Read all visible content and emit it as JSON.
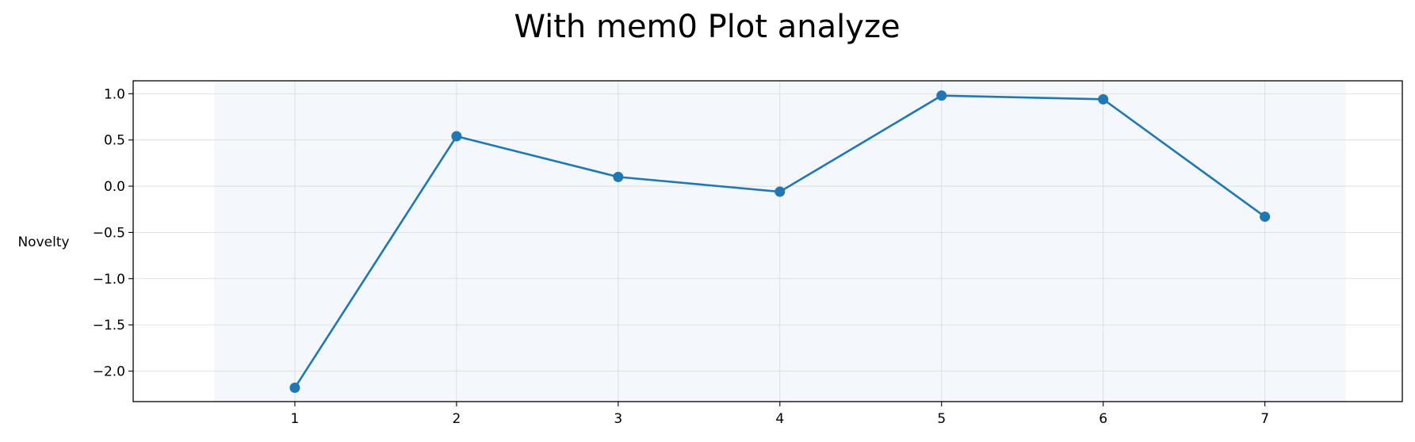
{
  "chart_data": {
    "type": "line",
    "title": "With mem0 Plot analyze",
    "xlabel": "",
    "ylabel": "Novelty",
    "x": [
      1,
      2,
      3,
      4,
      5,
      6,
      7
    ],
    "x_ticks": [
      "1",
      "2",
      "3",
      "4",
      "5",
      "6",
      "7"
    ],
    "y_ticks": [
      1.0,
      0.5,
      0.0,
      -0.5,
      -1.0,
      -1.5,
      -2.0
    ],
    "y_tick_labels": [
      "1.0",
      "0.5",
      "0.0",
      "−0.5",
      "−1.0",
      "−1.5",
      "−2.0"
    ],
    "xlim": [
      0.0,
      7.85
    ],
    "ylim": [
      -2.33,
      1.14
    ],
    "shaded_x_range": [
      0.5,
      7.5
    ],
    "grid": true,
    "series": [
      {
        "values": [
          -2.18,
          0.54,
          0.1,
          -0.06,
          0.98,
          0.94,
          -0.33
        ],
        "color": "#1f77b4",
        "marker": "circle"
      }
    ],
    "colors": {
      "line": "#1f77b4",
      "shade": "#f4f8fc",
      "grid": "#d9d9d9",
      "axes": "#000000"
    }
  }
}
